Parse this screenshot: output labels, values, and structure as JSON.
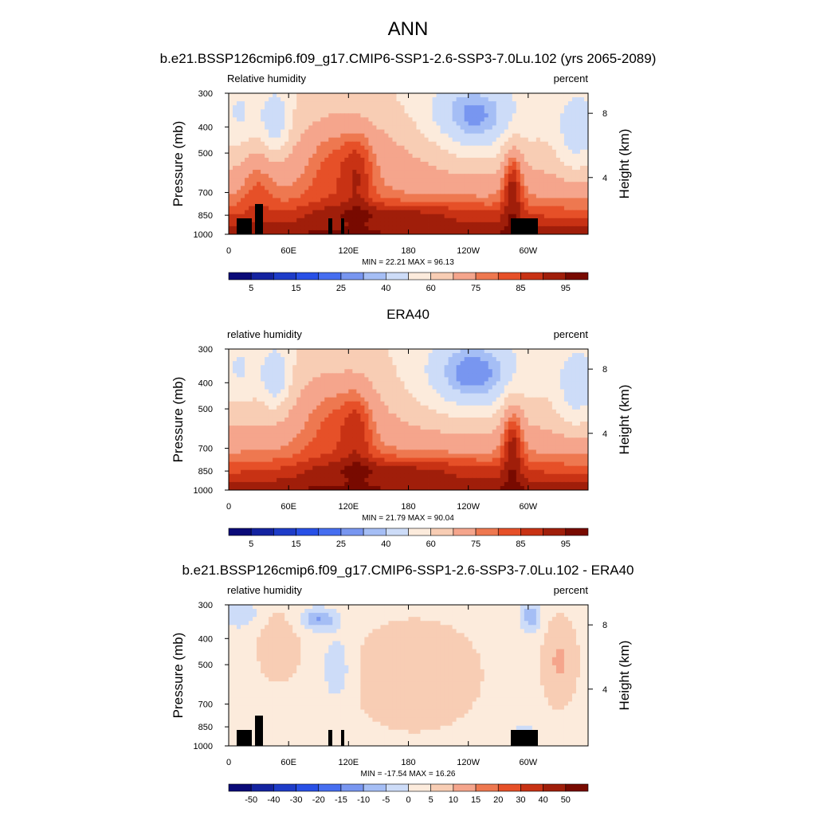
{
  "main_title": "ANN",
  "chart_data": [
    {
      "type": "heatmap",
      "title": "b.e21.BSSP126cmip6.f09_g17.CMIP6-SSP1-2.6-SSP3-7.0Lu.102 (yrs 2065-2089)",
      "left_label": "Relative humidity",
      "right_label": "percent",
      "ylabel": "Pressure (mb)",
      "ylabel_right": "Height (km)",
      "x_ticks": [
        "0",
        "60E",
        "120E",
        "180",
        "120W",
        "60W"
      ],
      "y_ticks": [
        "300",
        "400",
        "500",
        "700",
        "850",
        "1000"
      ],
      "height_ticks": [
        "8",
        "4"
      ],
      "stats": "MIN =  22.21  MAX =  96.13",
      "colorbar_labels": [
        "5",
        "15",
        "25",
        "40",
        "60",
        "75",
        "85",
        "95"
      ],
      "colors": [
        "#0a0a78",
        "#1423a0",
        "#1e3cc8",
        "#2850e6",
        "#466ef0",
        "#7896f0",
        "#a5bef5",
        "#cddcf8",
        "#fcebdc",
        "#f8cdb4",
        "#f5a58c",
        "#ee7850",
        "#e65028",
        "#c83214",
        "#a01e0a",
        "#780a00"
      ],
      "terrain": true
    },
    {
      "type": "heatmap",
      "title": "ERA40",
      "left_label": "relative humidity",
      "right_label": "percent",
      "ylabel": "Pressure (mb)",
      "ylabel_right": "Height (km)",
      "x_ticks": [
        "0",
        "60E",
        "120E",
        "180",
        "120W",
        "60W"
      ],
      "y_ticks": [
        "300",
        "400",
        "500",
        "700",
        "850",
        "1000"
      ],
      "height_ticks": [
        "8",
        "4"
      ],
      "stats": "MIN =  21.79  MAX =  90.04",
      "colorbar_labels": [
        "5",
        "15",
        "25",
        "40",
        "60",
        "75",
        "85",
        "95"
      ],
      "colors": [
        "#0a0a78",
        "#1423a0",
        "#1e3cc8",
        "#2850e6",
        "#466ef0",
        "#7896f0",
        "#a5bef5",
        "#cddcf8",
        "#fcebdc",
        "#f8cdb4",
        "#f5a58c",
        "#ee7850",
        "#e65028",
        "#c83214",
        "#a01e0a",
        "#780a00"
      ],
      "terrain": false
    },
    {
      "type": "heatmap",
      "title": "b.e21.BSSP126cmip6.f09_g17.CMIP6-SSP1-2.6-SSP3-7.0Lu.102 - ERA40",
      "left_label": "relative humidity",
      "right_label": "percent",
      "ylabel": "Pressure (mb)",
      "ylabel_right": "Height (km)",
      "x_ticks": [
        "0",
        "60E",
        "120E",
        "180",
        "120W",
        "60W"
      ],
      "y_ticks": [
        "300",
        "400",
        "500",
        "700",
        "850",
        "1000"
      ],
      "height_ticks": [
        "8",
        "4"
      ],
      "stats": "MIN = -17.54  MAX =  16.26",
      "colorbar_labels": [
        "-50",
        "-40",
        "-30",
        "-20",
        "-15",
        "-10",
        "-5",
        "0",
        "5",
        "10",
        "15",
        "20",
        "30",
        "40",
        "50"
      ],
      "colors": [
        "#0a0a78",
        "#1423a0",
        "#1e3cc8",
        "#2850e6",
        "#466ef0",
        "#7896f0",
        "#a5bef5",
        "#cddcf8",
        "#fcebdc",
        "#f8cdb4",
        "#f5a58c",
        "#ee7850",
        "#e65028",
        "#c83214",
        "#a01e0a",
        "#780a00"
      ],
      "terrain": true
    }
  ]
}
